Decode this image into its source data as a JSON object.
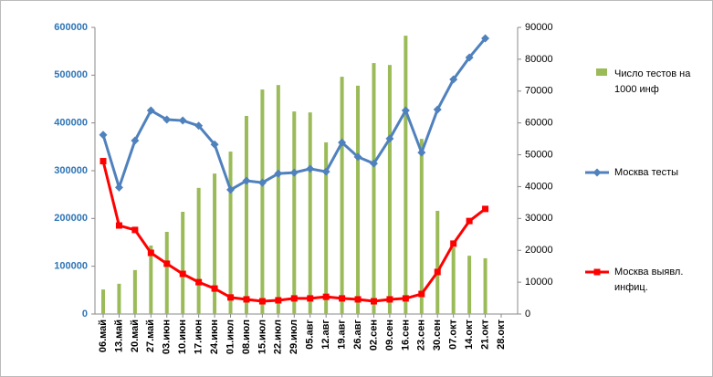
{
  "chart_data": {
    "type": "combo",
    "categories": [
      "06.май",
      "13.май",
      "20.май",
      "27.май",
      "03.июн",
      "10.июн",
      "17.июн",
      "24.июн",
      "01.июл",
      "08.июл",
      "15.июл",
      "22.июл",
      "29.июл",
      "05.авг",
      "12.авг",
      "19.авг",
      "26.авг",
      "02.сен",
      "09.сен",
      "16.сен",
      "23.сен",
      "30.сен",
      "07.окт",
      "14.окт",
      "21.окт",
      "28.окт"
    ],
    "ylim": [
      0,
      600000
    ],
    "yticks": [
      0,
      100000,
      200000,
      300000,
      400000,
      500000,
      600000
    ],
    "y2lim": [
      0,
      90000
    ],
    "y2ticks": [
      0,
      10000,
      20000,
      30000,
      40000,
      50000,
      60000,
      70000,
      80000,
      90000
    ],
    "series": [
      {
        "name": "Число тестов на 1000 инф",
        "kind": "bar",
        "axis": "y2",
        "color": "#9bbb59",
        "values": [
          7700,
          9500,
          13800,
          21500,
          25800,
          32100,
          39600,
          44100,
          51000,
          62200,
          70500,
          71900,
          63600,
          63300,
          53900,
          74500,
          71700,
          78800,
          78200,
          87400,
          55000,
          32400,
          20900,
          18300,
          17500,
          null
        ]
      },
      {
        "name": "Москва тесты",
        "kind": "line",
        "axis": "y",
        "color": "#4f81bd",
        "values": [
          375000,
          265000,
          363000,
          426000,
          407000,
          405000,
          394000,
          355000,
          260000,
          279000,
          275000,
          294000,
          296000,
          304000,
          298000,
          359000,
          329000,
          315000,
          367000,
          426000,
          338000,
          428000,
          491000,
          537000,
          577000,
          null
        ]
      },
      {
        "name": "Москва  выявл. инфиц.",
        "kind": "line",
        "axis": "y2",
        "color": "#ff0000",
        "values": [
          48000,
          27800,
          26400,
          19200,
          15800,
          12600,
          10000,
          8000,
          5200,
          4600,
          4000,
          4300,
          4900,
          4900,
          5400,
          4900,
          4600,
          4000,
          4600,
          4900,
          6300,
          13200,
          22100,
          29200,
          33000,
          null
        ]
      }
    ]
  }
}
